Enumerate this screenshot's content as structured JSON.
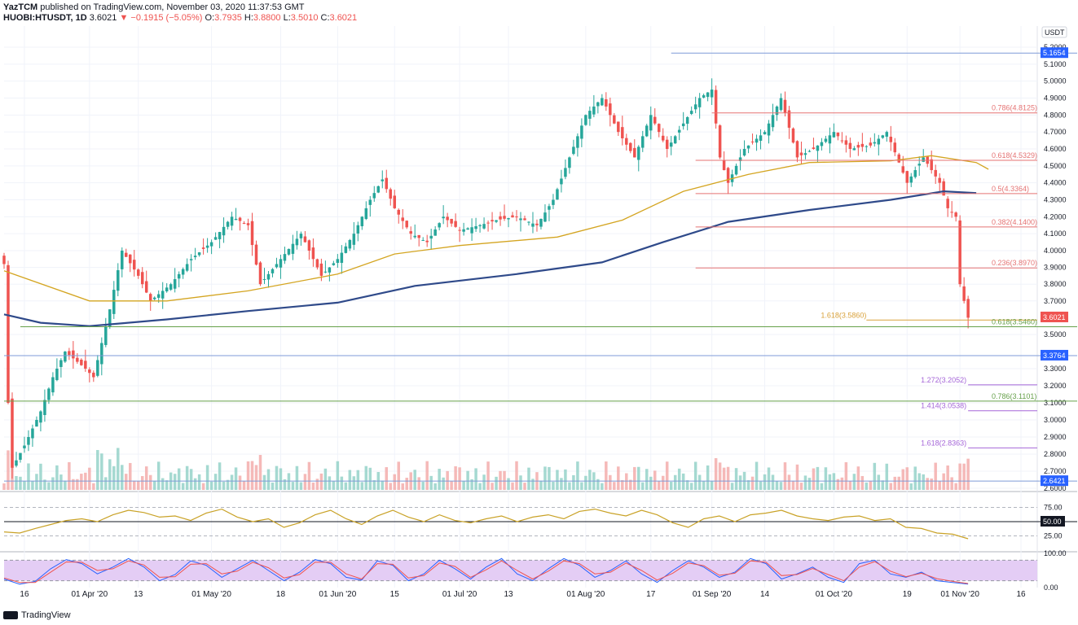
{
  "header": {
    "line1_user": "YazTCM",
    "line1_rest": " published on TradingView.com, November 03, 2020 11:37:53 GMT",
    "symbol": "HUOBI:HTUSDT, 1D",
    "price": "3.6021",
    "change": "−0.1915 (−5.05%)",
    "o_label": "O:",
    "o_val": "3.7935",
    "h_label": "H:",
    "h_val": "3.8800",
    "l_label": "L:",
    "l_val": "3.5010",
    "c_label": "C:",
    "c_val": "3.6021"
  },
  "footer": {
    "brand": "TradingView"
  },
  "colors": {
    "up": "#26a69a",
    "down": "#ef5350",
    "ma_fast": "#d4a521",
    "ma_slow": "#2f4a8a",
    "fib": "#e57373",
    "green_line": "#66a04a",
    "blue_line": "#7f9bd8",
    "purple": "#a566d8",
    "rsi": "#c9a227",
    "stoch_band": "#e4cdf5"
  },
  "chart_data": [
    {
      "type": "candlestick",
      "title": "",
      "currency": "USDT",
      "ylim": [
        2.6,
        5.25
      ],
      "y_ticks": [
        "5.2000",
        "5.1000",
        "5.0000",
        "4.9000",
        "4.8000",
        "4.7000",
        "4.6000",
        "4.5000",
        "4.4000",
        "4.3000",
        "4.2000",
        "4.1000",
        "4.0000",
        "3.9000",
        "3.8000",
        "3.7000",
        "3.5000",
        "3.3000",
        "3.2000",
        "3.1000",
        "3.0000",
        "2.9000",
        "2.8000",
        "2.7000",
        "2.6000"
      ],
      "x_ticks": [
        "16",
        "01 Apr '20",
        "13",
        "01 May '20",
        "18",
        "01 Jun '20",
        "15",
        "01 Jul '20",
        "13",
        "01 Aug '20",
        "17",
        "01 Sep '20",
        "14",
        "01 Oct '20",
        "19",
        "01 Nov '20",
        "16"
      ],
      "x_range": [
        "2020-03-11",
        "2020-11-20"
      ],
      "x_tick_dates": [
        "2020-03-16",
        "2020-04-01",
        "2020-04-13",
        "2020-05-01",
        "2020-05-18",
        "2020-06-01",
        "2020-06-15",
        "2020-07-01",
        "2020-07-13",
        "2020-08-01",
        "2020-08-17",
        "2020-09-01",
        "2020-09-14",
        "2020-10-01",
        "2020-10-19",
        "2020-11-01",
        "2020-11-16"
      ],
      "price_path": [
        [
          "2020-03-11",
          3.92
        ],
        [
          "2020-03-12",
          3.1
        ],
        [
          "2020-03-13",
          2.72
        ],
        [
          "2020-03-16",
          2.85
        ],
        [
          "2020-03-20",
          3.05
        ],
        [
          "2020-03-23",
          3.25
        ],
        [
          "2020-03-26",
          3.4
        ],
        [
          "2020-03-31",
          3.3
        ],
        [
          "2020-04-02",
          3.25
        ],
        [
          "2020-04-06",
          3.65
        ],
        [
          "2020-04-09",
          4.0
        ],
        [
          "2020-04-13",
          3.85
        ],
        [
          "2020-04-16",
          3.7
        ],
        [
          "2020-04-21",
          3.8
        ],
        [
          "2020-04-26",
          3.95
        ],
        [
          "2020-05-01",
          4.05
        ],
        [
          "2020-05-06",
          4.2
        ],
        [
          "2020-05-10",
          4.15
        ],
        [
          "2020-05-13",
          3.8
        ],
        [
          "2020-05-18",
          3.95
        ],
        [
          "2020-05-23",
          4.1
        ],
        [
          "2020-05-28",
          3.85
        ],
        [
          "2020-06-01",
          3.95
        ],
        [
          "2020-06-05",
          4.1
        ],
        [
          "2020-06-09",
          4.3
        ],
        [
          "2020-06-12",
          4.42
        ],
        [
          "2020-06-15",
          4.25
        ],
        [
          "2020-06-19",
          4.1
        ],
        [
          "2020-06-23",
          4.05
        ],
        [
          "2020-06-27",
          4.2
        ],
        [
          "2020-07-01",
          4.12
        ],
        [
          "2020-07-06",
          4.15
        ],
        [
          "2020-07-10",
          4.18
        ],
        [
          "2020-07-15",
          4.2
        ],
        [
          "2020-07-20",
          4.15
        ],
        [
          "2020-07-24",
          4.3
        ],
        [
          "2020-07-28",
          4.55
        ],
        [
          "2020-08-01",
          4.8
        ],
        [
          "2020-08-05",
          4.9
        ],
        [
          "2020-08-09",
          4.7
        ],
        [
          "2020-08-13",
          4.55
        ],
        [
          "2020-08-17",
          4.8
        ],
        [
          "2020-08-21",
          4.6
        ],
        [
          "2020-08-25",
          4.75
        ],
        [
          "2020-08-29",
          4.9
        ],
        [
          "2020-09-01",
          4.95
        ],
        [
          "2020-09-03",
          4.55
        ],
        [
          "2020-09-05",
          4.4
        ],
        [
          "2020-09-09",
          4.6
        ],
        [
          "2020-09-14",
          4.7
        ],
        [
          "2020-09-18",
          4.9
        ],
        [
          "2020-09-22",
          4.55
        ],
        [
          "2020-09-26",
          4.6
        ],
        [
          "2020-10-01",
          4.7
        ],
        [
          "2020-10-05",
          4.6
        ],
        [
          "2020-10-10",
          4.62
        ],
        [
          "2020-10-14",
          4.7
        ],
        [
          "2020-10-19",
          4.4
        ],
        [
          "2020-10-23",
          4.55
        ],
        [
          "2020-10-27",
          4.4
        ],
        [
          "2020-10-29",
          4.25
        ],
        [
          "2020-10-31",
          4.2
        ],
        [
          "2020-11-01",
          3.8
        ],
        [
          "2020-11-03",
          3.6
        ]
      ],
      "ma_fast_path": [
        [
          "2020-03-11",
          3.88
        ],
        [
          "2020-04-01",
          3.7
        ],
        [
          "2020-04-20",
          3.7
        ],
        [
          "2020-05-10",
          3.76
        ],
        [
          "2020-06-01",
          3.86
        ],
        [
          "2020-06-15",
          3.98
        ],
        [
          "2020-07-01",
          4.03
        ],
        [
          "2020-07-25",
          4.08
        ],
        [
          "2020-08-10",
          4.18
        ],
        [
          "2020-08-25",
          4.35
        ],
        [
          "2020-09-10",
          4.45
        ],
        [
          "2020-09-25",
          4.52
        ],
        [
          "2020-10-15",
          4.53
        ],
        [
          "2020-10-25",
          4.56
        ],
        [
          "2020-11-05",
          4.52
        ],
        [
          "2020-11-08",
          4.48
        ]
      ],
      "ma_slow_path": [
        [
          "2020-03-11",
          3.62
        ],
        [
          "2020-03-20",
          3.57
        ],
        [
          "2020-04-01",
          3.55
        ],
        [
          "2020-04-20",
          3.59
        ],
        [
          "2020-05-10",
          3.64
        ],
        [
          "2020-06-01",
          3.69
        ],
        [
          "2020-06-20",
          3.79
        ],
        [
          "2020-07-15",
          3.86
        ],
        [
          "2020-08-05",
          3.93
        ],
        [
          "2020-08-20",
          4.05
        ],
        [
          "2020-09-05",
          4.17
        ],
        [
          "2020-09-25",
          4.24
        ],
        [
          "2020-10-15",
          4.3
        ],
        [
          "2020-10-28",
          4.35
        ],
        [
          "2020-11-05",
          4.34
        ]
      ],
      "horizontal_levels": [
        {
          "price": 5.1654,
          "label": "5.1654",
          "kind": "blue",
          "from": "2020-08-22"
        },
        {
          "price": 4.8125,
          "label": "0.786(4.8125)",
          "kind": "fib",
          "from": "2020-09-01"
        },
        {
          "price": 4.5329,
          "label": "0.618(4.5329)",
          "kind": "fib",
          "from": "2020-08-28"
        },
        {
          "price": 4.3364,
          "label": "0.5(4.3364)",
          "kind": "fib",
          "from": "2020-08-28"
        },
        {
          "price": 4.14,
          "label": "0.382(4.1400)",
          "kind": "fib",
          "from": "2020-08-28"
        },
        {
          "price": 3.897,
          "label": "0.236(3.8970)",
          "kind": "fib",
          "from": "2020-08-28"
        },
        {
          "price": 3.586,
          "label": "1.618(3.5860)",
          "kind": "ext",
          "from": "2020-10-09"
        },
        {
          "price": 3.546,
          "label": "0.618(3.5460)",
          "kind": "green",
          "from": "2020-03-15"
        },
        {
          "price": 3.3764,
          "label": "3.3764",
          "kind": "blue",
          "from": "2020-03-11"
        },
        {
          "price": 3.2052,
          "label": "1.272(3.2052)",
          "kind": "purple",
          "from": "2020-11-03"
        },
        {
          "price": 3.1101,
          "label": "0.786(3.1101)",
          "kind": "green",
          "from": "2020-03-11"
        },
        {
          "price": 3.0538,
          "label": "1.414(3.0538)",
          "kind": "purple",
          "from": "2020-11-03"
        },
        {
          "price": 2.8363,
          "label": "1.618(2.8363)",
          "kind": "purple",
          "from": "2020-11-03"
        },
        {
          "price": 2.6421,
          "label": "2.6421",
          "kind": "blue",
          "from": "2020-03-11"
        }
      ],
      "current_price_label": "3.6021"
    },
    {
      "type": "line",
      "title": "",
      "ylim": [
        0,
        100
      ],
      "y_ticks": [
        "75.00",
        "50.00",
        "25.00"
      ],
      "reference_line": 50,
      "values": [
        32,
        30,
        38,
        45,
        52,
        55,
        50,
        62,
        70,
        66,
        58,
        60,
        52,
        65,
        72,
        58,
        50,
        55,
        40,
        48,
        62,
        70,
        55,
        45,
        60,
        70,
        58,
        50,
        62,
        52,
        48,
        55,
        60,
        50,
        58,
        62,
        55,
        68,
        72,
        65,
        60,
        70,
        62,
        48,
        40,
        55,
        60,
        50,
        62,
        65,
        70,
        60,
        55,
        52,
        58,
        60,
        52,
        55,
        40,
        38,
        30,
        28,
        20
      ]
    },
    {
      "type": "line",
      "title": "",
      "ylim": [
        0,
        100
      ],
      "y_ticks": [
        "100.00",
        "0.00"
      ],
      "band": [
        20,
        80
      ],
      "series": [
        {
          "values": [
            25,
            10,
            18,
            55,
            82,
            70,
            40,
            60,
            85,
            60,
            20,
            38,
            78,
            65,
            30,
            55,
            80,
            50,
            20,
            45,
            82,
            70,
            30,
            22,
            78,
            65,
            20,
            40,
            80,
            55,
            25,
            60,
            85,
            40,
            20,
            55,
            85,
            65,
            30,
            50,
            78,
            40,
            15,
            50,
            78,
            60,
            30,
            45,
            85,
            70,
            25,
            40,
            60,
            30,
            15,
            70,
            80,
            40,
            30,
            45,
            20,
            15,
            10
          ]
        },
        {
          "values": [
            28,
            15,
            15,
            45,
            75,
            74,
            50,
            55,
            78,
            66,
            30,
            32,
            68,
            70,
            40,
            48,
            74,
            58,
            28,
            38,
            74,
            74,
            40,
            25,
            70,
            68,
            28,
            35,
            72,
            62,
            30,
            52,
            78,
            50,
            25,
            48,
            78,
            70,
            40,
            45,
            72,
            50,
            22,
            42,
            72,
            64,
            36,
            42,
            78,
            74,
            35,
            38,
            56,
            38,
            20,
            60,
            76,
            48,
            32,
            42,
            26,
            18,
            12
          ]
        }
      ]
    }
  ]
}
